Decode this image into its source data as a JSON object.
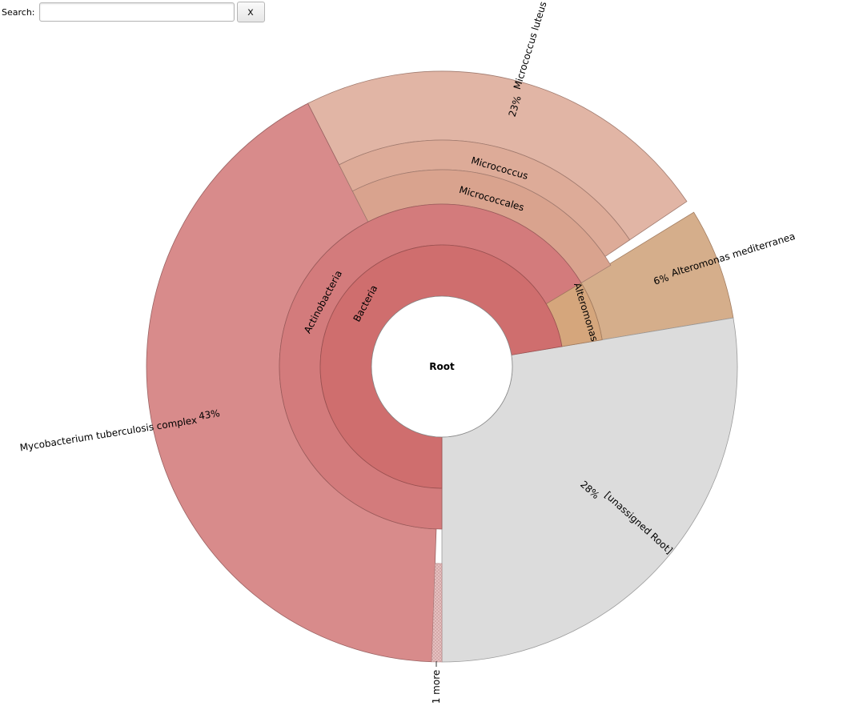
{
  "search": {
    "label": "Search:",
    "value": "",
    "placeholder": "",
    "clear_label": "x"
  },
  "chart_data": {
    "type": "sunburst",
    "root": {
      "name": "Root"
    },
    "nodes": [
      {
        "id": "bacteria",
        "name": "Bacteria",
        "parent": "root",
        "fraction": 0.72,
        "color": "#cf6e6e"
      },
      {
        "id": "actino",
        "name": "Actinobacteria",
        "parent": "bacteria",
        "fraction": 0.66,
        "color": "#d37b7c"
      },
      {
        "id": "alteromonas",
        "name": "Alteromonas",
        "parent": "bacteria",
        "fraction": 0.06,
        "color": "#d5a67c"
      },
      {
        "id": "micrococcales",
        "name": "Micrococcales",
        "parent": "actino",
        "fraction": 0.23,
        "color": "#d9a38e"
      },
      {
        "id": "micrococcus",
        "name": "Micrococcus",
        "parent": "micrococcales",
        "fraction": 0.23,
        "color": "#ddab98"
      },
      {
        "id": "mluteus",
        "name": "Micrococcus luteus",
        "parent": "micrococcus",
        "fraction": 0.23,
        "percent_label": "23%",
        "color": "#e1b5a5"
      },
      {
        "id": "mtb",
        "name": "Mycobacterium tuberculosis complex",
        "parent": "actino",
        "fraction": 0.43,
        "percent_label": "43%",
        "color": "#d88b8b"
      },
      {
        "id": "amed",
        "name": "Alteromonas mediterranea",
        "parent": "alteromonas",
        "fraction": 0.06,
        "percent_label": "6%",
        "color": "#d5ae8b"
      },
      {
        "id": "unassigned",
        "name": "[unassigned Root]",
        "parent": "root",
        "fraction": 0.28,
        "percent_label": "28%",
        "color": "#dcdcdc"
      }
    ],
    "collapsed": {
      "label": "1 more"
    }
  }
}
